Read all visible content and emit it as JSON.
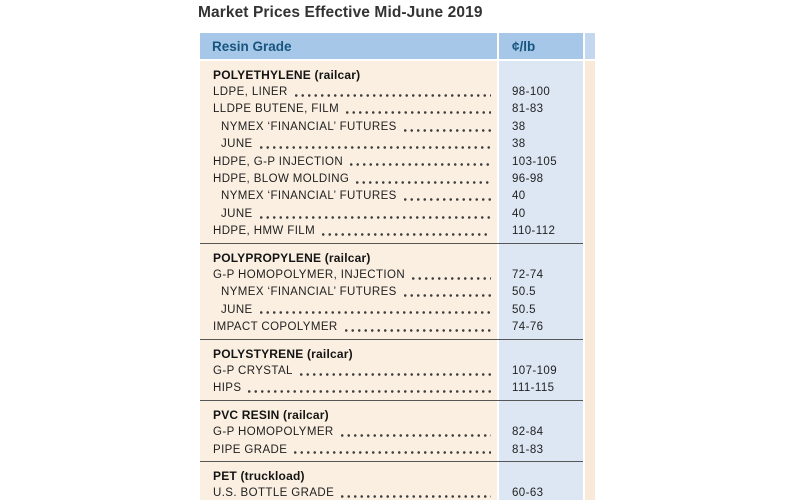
{
  "title": "Market Prices Effective Mid-June 2019",
  "chart_data": {
    "type": "table",
    "title": "Market Prices Effective Mid-June 2019",
    "columns": [
      "Resin Grade",
      "¢/lb"
    ],
    "unit": "¢/lb",
    "sections": [
      {
        "title": "POLYETHYLENE (railcar)",
        "rows": [
          {
            "label": "LDPE, LINER",
            "value": "98-100",
            "indent": false
          },
          {
            "label": "LLDPE BUTENE, FILM",
            "value": "81-83",
            "indent": false
          },
          {
            "label": "NYMEX ‘FINANCIAL’ FUTURES",
            "value": "38",
            "indent": true
          },
          {
            "label": "JUNE",
            "value": "38",
            "indent": true
          },
          {
            "label": "HDPE, G-P INJECTION",
            "value": "103-105",
            "indent": false
          },
          {
            "label": "HDPE, BLOW MOLDING",
            "value": "96-98",
            "indent": false
          },
          {
            "label": "NYMEX ‘FINANCIAL’ FUTURES",
            "value": "40",
            "indent": true
          },
          {
            "label": "JUNE",
            "value": "40",
            "indent": true
          },
          {
            "label": "HDPE, HMW FILM",
            "value": "110-112",
            "indent": false
          }
        ]
      },
      {
        "title": "POLYPROPYLENE (railcar)",
        "rows": [
          {
            "label": "G-P HOMOPOLYMER, INJECTION",
            "value": "72-74",
            "indent": false
          },
          {
            "label": "NYMEX ‘FINANCIAL’ FUTURES",
            "value": "50.5",
            "indent": true
          },
          {
            "label": "JUNE",
            "value": "50.5",
            "indent": true
          },
          {
            "label": "IMPACT COPOLYMER",
            "value": "74-76",
            "indent": false
          }
        ]
      },
      {
        "title": "POLYSTYRENE (railcar)",
        "rows": [
          {
            "label": "G-P CRYSTAL",
            "value": "107-109",
            "indent": false
          },
          {
            "label": "HIPS",
            "value": "111-115",
            "indent": false
          }
        ]
      },
      {
        "title": "PVC RESIN (railcar)",
        "rows": [
          {
            "label": "G-P HOMOPOLYMER",
            "value": "82-84",
            "indent": false
          },
          {
            "label": "PIPE GRADE",
            "value": "81-83",
            "indent": false
          }
        ]
      },
      {
        "title": "PET (truckload)",
        "rows": [
          {
            "label": "U.S. BOTTLE GRADE",
            "value": "60-63",
            "indent": false
          }
        ]
      }
    ]
  },
  "colors": {
    "header_blue": "#a6c7e8",
    "header_text": "#17557e",
    "price_col": "#dde7f3",
    "cream": "#faefe1",
    "strip_cream": "#f8e9d8",
    "strip_header": "#c3d8ee",
    "divider": "#565656",
    "text": "#1f1f1f",
    "title_color": "#333333"
  }
}
